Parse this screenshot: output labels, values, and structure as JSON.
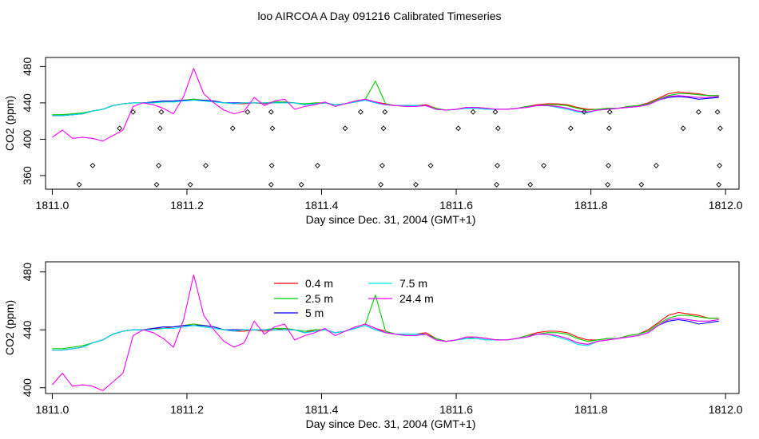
{
  "figure": {
    "title": "loo AIRCOA A  Day 091216  Calibrated Timeseries"
  },
  "chart_data": [
    {
      "type": "line",
      "panel": "top",
      "title": "",
      "xlabel": "Day since Dec. 31, 2004 (GMT+1)",
      "ylabel": "CO2 (ppm)",
      "xlim": [
        1810.99,
        1812.02
      ],
      "ylim": [
        345,
        490
      ],
      "x_ticks": [
        "1811.0",
        "1811.2",
        "1811.4",
        "1811.6",
        "1811.8",
        "1812.0"
      ],
      "y_ticks": [
        "360",
        "400",
        "440",
        "480"
      ],
      "legend": false,
      "series": [
        {
          "name": "0.4 m",
          "color": "#ff0000"
        },
        {
          "name": "2.5 m",
          "color": "#00cc00"
        },
        {
          "name": "5 m",
          "color": "#0000ff"
        },
        {
          "name": "7.5 m",
          "color": "#00e5e5"
        },
        {
          "name": "24.4 m",
          "color": "#ff00ff"
        }
      ],
      "markers": {
        "symbol": "diamond",
        "points": [
          [
            1811.04,
            350
          ],
          [
            1811.06,
            371
          ],
          [
            1811.1,
            412
          ],
          [
            1811.12,
            430
          ],
          [
            1811.155,
            350
          ],
          [
            1811.158,
            371
          ],
          [
            1811.16,
            412
          ],
          [
            1811.162,
            430
          ],
          [
            1811.205,
            350
          ],
          [
            1811.228,
            371
          ],
          [
            1811.268,
            412
          ],
          [
            1811.29,
            430
          ],
          [
            1811.325,
            350
          ],
          [
            1811.326,
            371
          ],
          [
            1811.327,
            412
          ],
          [
            1811.325,
            430
          ],
          [
            1811.37,
            350
          ],
          [
            1811.394,
            371
          ],
          [
            1811.435,
            412
          ],
          [
            1811.458,
            430
          ],
          [
            1811.488,
            350
          ],
          [
            1811.49,
            371
          ],
          [
            1811.492,
            412
          ],
          [
            1811.494,
            430
          ],
          [
            1811.54,
            350
          ],
          [
            1811.562,
            371
          ],
          [
            1811.603,
            412
          ],
          [
            1811.625,
            430
          ],
          [
            1811.66,
            350
          ],
          [
            1811.661,
            371
          ],
          [
            1811.662,
            412
          ],
          [
            1811.658,
            430
          ],
          [
            1811.71,
            350
          ],
          [
            1811.73,
            371
          ],
          [
            1811.77,
            412
          ],
          [
            1811.79,
            430
          ],
          [
            1811.825,
            350
          ],
          [
            1811.826,
            371
          ],
          [
            1811.827,
            412
          ],
          [
            1811.828,
            430
          ],
          [
            1811.875,
            350
          ],
          [
            1811.897,
            371
          ],
          [
            1811.937,
            412
          ],
          [
            1811.96,
            430
          ],
          [
            1811.99,
            350
          ],
          [
            1811.991,
            371
          ],
          [
            1811.992,
            412
          ],
          [
            1811.988,
            430
          ]
        ]
      }
    },
    {
      "type": "line",
      "panel": "bottom",
      "title": "",
      "xlabel": "Day since Dec. 31, 2004 (GMT+1)",
      "ylabel": "CO2 (ppm)",
      "xlim": [
        1810.99,
        1812.02
      ],
      "ylim": [
        396,
        487
      ],
      "x_ticks": [
        "1811.0",
        "1811.2",
        "1811.4",
        "1811.6",
        "1811.8",
        "1812.0"
      ],
      "y_ticks": [
        "400",
        "440",
        "480"
      ],
      "legend": "top-center",
      "series": [
        {
          "name": "0.4 m",
          "color": "#ff0000"
        },
        {
          "name": "2.5 m",
          "color": "#00cc00"
        },
        {
          "name": "5 m",
          "color": "#0000ff"
        },
        {
          "name": "7.5 m",
          "color": "#00e5e5"
        },
        {
          "name": "24.4 m",
          "color": "#ff00ff"
        }
      ]
    }
  ],
  "series_data": {
    "x": [
      1811.0,
      1811.015,
      1811.03,
      1811.045,
      1811.06,
      1811.075,
      1811.09,
      1811.105,
      1811.12,
      1811.135,
      1811.15,
      1811.165,
      1811.18,
      1811.195,
      1811.21,
      1811.225,
      1811.24,
      1811.255,
      1811.27,
      1811.285,
      1811.3,
      1811.315,
      1811.33,
      1811.345,
      1811.36,
      1811.375,
      1811.39,
      1811.405,
      1811.42,
      1811.435,
      1811.45,
      1811.465,
      1811.48,
      1811.495,
      1811.51,
      1811.525,
      1811.54,
      1811.555,
      1811.57,
      1811.585,
      1811.6,
      1811.615,
      1811.63,
      1811.645,
      1811.66,
      1811.675,
      1811.69,
      1811.705,
      1811.72,
      1811.735,
      1811.75,
      1811.765,
      1811.78,
      1811.795,
      1811.81,
      1811.825,
      1811.84,
      1811.855,
      1811.87,
      1811.885,
      1811.9,
      1811.915,
      1811.93,
      1811.945,
      1811.96,
      1811.975,
      1811.99
    ],
    "y": {
      "0.4 m": [
        426,
        426,
        427,
        428,
        431,
        433,
        437,
        439,
        440,
        440,
        441,
        441,
        442,
        443,
        444,
        443,
        442,
        440,
        439,
        439,
        440,
        439,
        440,
        441,
        440,
        438,
        440,
        440,
        438,
        439,
        442,
        444,
        441,
        439,
        437,
        437,
        437,
        438,
        434,
        432,
        433,
        435,
        435,
        434,
        433,
        433,
        434,
        436,
        438,
        439,
        439,
        438,
        435,
        433,
        433,
        434,
        434,
        436,
        437,
        440,
        445,
        450,
        452,
        451,
        450,
        448,
        448
      ],
      "2.5 m": [
        427,
        427,
        428,
        429,
        431,
        433,
        437,
        439,
        440,
        440,
        441,
        442,
        442,
        443,
        444,
        443,
        442,
        440,
        440,
        440,
        440,
        440,
        441,
        441,
        440,
        439,
        440,
        440,
        438,
        439,
        442,
        444,
        464,
        439,
        437,
        437,
        437,
        437,
        434,
        432,
        433,
        434,
        435,
        434,
        433,
        433,
        434,
        436,
        437,
        438,
        438,
        437,
        434,
        432,
        433,
        434,
        434,
        436,
        437,
        439,
        444,
        448,
        450,
        450,
        449,
        448,
        448
      ],
      "5 m": [
        426,
        426,
        427,
        428,
        431,
        433,
        437,
        439,
        440,
        440,
        441,
        442,
        442,
        443,
        443,
        443,
        442,
        440,
        440,
        440,
        440,
        440,
        440,
        440,
        440,
        438,
        439,
        440,
        438,
        439,
        441,
        443,
        440,
        438,
        437,
        437,
        437,
        437,
        433,
        432,
        433,
        434,
        434,
        433,
        433,
        433,
        434,
        435,
        437,
        437,
        436,
        434,
        431,
        430,
        432,
        433,
        434,
        435,
        436,
        438,
        443,
        446,
        447,
        446,
        444,
        445,
        446
      ],
      "7.5 m": [
        426,
        426,
        427,
        428,
        431,
        433,
        437,
        439,
        440,
        440,
        440,
        441,
        441,
        442,
        443,
        442,
        441,
        440,
        439,
        440,
        440,
        440,
        440,
        440,
        440,
        438,
        439,
        440,
        438,
        439,
        441,
        443,
        440,
        438,
        437,
        437,
        437,
        437,
        433,
        432,
        433,
        434,
        434,
        433,
        433,
        433,
        434,
        435,
        437,
        437,
        435,
        433,
        430,
        429,
        432,
        433,
        434,
        435,
        436,
        438,
        443,
        447,
        448,
        447,
        446,
        446,
        447
      ],
      "24.4 m": [
        402,
        410,
        401,
        402,
        401,
        398,
        404,
        410,
        436,
        440,
        438,
        434,
        428,
        447,
        478,
        450,
        440,
        432,
        428,
        431,
        446,
        437,
        442,
        444,
        433,
        436,
        438,
        441,
        436,
        439,
        442,
        444,
        441,
        438,
        437,
        436,
        436,
        437,
        433,
        432,
        433,
        435,
        435,
        434,
        433,
        433,
        434,
        435,
        437,
        437,
        436,
        434,
        431,
        430,
        432,
        433,
        434,
        435,
        436,
        438,
        443,
        447,
        448,
        447,
        446,
        446,
        447
      ]
    }
  }
}
